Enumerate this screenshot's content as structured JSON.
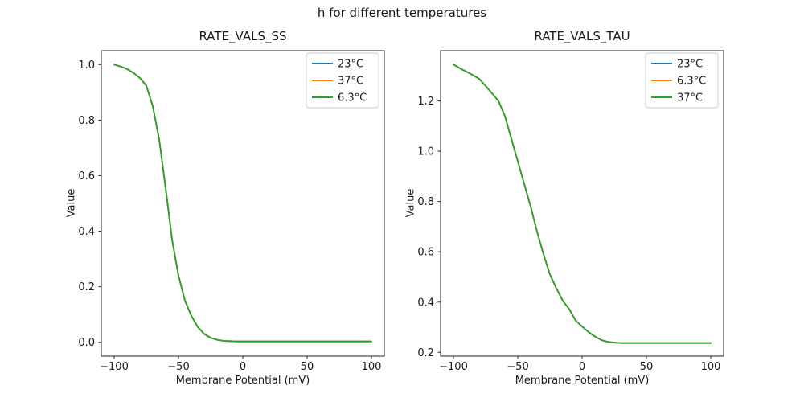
{
  "figure": {
    "title": "h for different temperatures"
  },
  "styles": {
    "background": "#ffffff",
    "text_color": "#1a1a1a",
    "spine_color": "#262626",
    "legend_border": "#cccccc",
    "palette": [
      "#1f77b4",
      "#ff7f0e",
      "#2ca02c"
    ]
  },
  "chart_data": [
    {
      "id": "rate_vals_ss",
      "type": "line",
      "title": "RATE_VALS_SS",
      "xlabel": "Membrane Potential (mV)",
      "ylabel": "Value",
      "xlim": [
        -110,
        110
      ],
      "ylim": [
        -0.05,
        1.05
      ],
      "grid": false,
      "legend_position": "upper right",
      "xticks": [
        -100,
        -50,
        0,
        50,
        100
      ],
      "xtick_labels": [
        "−100",
        "−50",
        "0",
        "50",
        "100"
      ],
      "yticks": [
        0.0,
        0.2,
        0.4,
        0.6,
        0.8,
        1.0
      ],
      "ytick_labels": [
        "0.0",
        "0.2",
        "0.4",
        "0.6",
        "0.8",
        "1.0"
      ],
      "x": [
        -100,
        -95,
        -90,
        -85,
        -80,
        -75,
        -70,
        -65,
        -60,
        -55,
        -50,
        -45,
        -40,
        -35,
        -30,
        -25,
        -20,
        -15,
        -10,
        -5,
        0,
        5,
        10,
        15,
        20,
        25,
        30,
        35,
        40,
        45,
        50,
        55,
        60,
        65,
        70,
        75,
        80,
        85,
        90,
        95,
        100
      ],
      "series": [
        {
          "name": "23°C",
          "color": "#1f77b4",
          "values": [
            1.0,
            0.993,
            0.984,
            0.97,
            0.952,
            0.924,
            0.85,
            0.73,
            0.555,
            0.37,
            0.24,
            0.15,
            0.095,
            0.055,
            0.03,
            0.016,
            0.009,
            0.005,
            0.004,
            0.003,
            0.003,
            0.003,
            0.003,
            0.003,
            0.003,
            0.003,
            0.003,
            0.003,
            0.003,
            0.003,
            0.003,
            0.003,
            0.003,
            0.003,
            0.003,
            0.003,
            0.003,
            0.003,
            0.003,
            0.003,
            0.003
          ]
        },
        {
          "name": "37°C",
          "color": "#ff7f0e",
          "values": [
            1.0,
            0.993,
            0.984,
            0.97,
            0.952,
            0.924,
            0.85,
            0.73,
            0.555,
            0.37,
            0.24,
            0.15,
            0.095,
            0.055,
            0.03,
            0.016,
            0.009,
            0.005,
            0.004,
            0.003,
            0.003,
            0.003,
            0.003,
            0.003,
            0.003,
            0.003,
            0.003,
            0.003,
            0.003,
            0.003,
            0.003,
            0.003,
            0.003,
            0.003,
            0.003,
            0.003,
            0.003,
            0.003,
            0.003,
            0.003,
            0.003
          ]
        },
        {
          "name": "6.3°C",
          "color": "#2ca02c",
          "values": [
            1.0,
            0.993,
            0.984,
            0.97,
            0.952,
            0.924,
            0.85,
            0.73,
            0.555,
            0.37,
            0.24,
            0.15,
            0.095,
            0.055,
            0.03,
            0.016,
            0.009,
            0.005,
            0.004,
            0.003,
            0.003,
            0.003,
            0.003,
            0.003,
            0.003,
            0.003,
            0.003,
            0.003,
            0.003,
            0.003,
            0.003,
            0.003,
            0.003,
            0.003,
            0.003,
            0.003,
            0.003,
            0.003,
            0.003,
            0.003,
            0.003
          ]
        }
      ]
    },
    {
      "id": "rate_vals_tau",
      "type": "line",
      "title": "RATE_VALS_TAU",
      "xlabel": "Membrane Potential (mV)",
      "ylabel": "Value",
      "xlim": [
        -110,
        110
      ],
      "ylim": [
        0.185,
        1.4
      ],
      "grid": false,
      "legend_position": "upper right",
      "xticks": [
        -100,
        -50,
        0,
        50,
        100
      ],
      "xtick_labels": [
        "−100",
        "−50",
        "0",
        "50",
        "100"
      ],
      "yticks": [
        0.2,
        0.4,
        0.6,
        0.8,
        1.0,
        1.2
      ],
      "ytick_labels": [
        "0.2",
        "0.4",
        "0.6",
        "0.8",
        "1.0",
        "1.2"
      ],
      "x": [
        -100,
        -95,
        -90,
        -85,
        -80,
        -75,
        -70,
        -65,
        -60,
        -55,
        -50,
        -45,
        -40,
        -35,
        -30,
        -25,
        -20,
        -15,
        -10,
        -5,
        0,
        5,
        10,
        15,
        20,
        25,
        30,
        35,
        40,
        45,
        50,
        55,
        60,
        65,
        70,
        75,
        80,
        85,
        90,
        95,
        100
      ],
      "series": [
        {
          "name": "23°C",
          "color": "#1f77b4",
          "values": [
            1.345,
            1.33,
            1.317,
            1.303,
            1.288,
            1.26,
            1.23,
            1.2,
            1.14,
            1.05,
            0.96,
            0.87,
            0.78,
            0.68,
            0.59,
            0.51,
            0.455,
            0.405,
            0.372,
            0.327,
            0.303,
            0.281,
            0.263,
            0.249,
            0.242,
            0.239,
            0.237,
            0.237,
            0.237,
            0.237,
            0.237,
            0.237,
            0.237,
            0.237,
            0.237,
            0.237,
            0.237,
            0.237,
            0.237,
            0.237,
            0.237
          ]
        },
        {
          "name": "6.3°C",
          "color": "#ff7f0e",
          "values": [
            1.345,
            1.33,
            1.317,
            1.303,
            1.288,
            1.26,
            1.23,
            1.2,
            1.14,
            1.05,
            0.96,
            0.87,
            0.78,
            0.68,
            0.59,
            0.51,
            0.455,
            0.405,
            0.372,
            0.327,
            0.303,
            0.281,
            0.263,
            0.249,
            0.242,
            0.239,
            0.237,
            0.237,
            0.237,
            0.237,
            0.237,
            0.237,
            0.237,
            0.237,
            0.237,
            0.237,
            0.237,
            0.237,
            0.237,
            0.237,
            0.237
          ]
        },
        {
          "name": "37°C",
          "color": "#2ca02c",
          "values": [
            1.345,
            1.33,
            1.317,
            1.303,
            1.288,
            1.26,
            1.23,
            1.2,
            1.14,
            1.05,
            0.96,
            0.87,
            0.78,
            0.68,
            0.59,
            0.51,
            0.455,
            0.405,
            0.372,
            0.327,
            0.303,
            0.281,
            0.263,
            0.249,
            0.242,
            0.239,
            0.237,
            0.237,
            0.237,
            0.237,
            0.237,
            0.237,
            0.237,
            0.237,
            0.237,
            0.237,
            0.237,
            0.237,
            0.237,
            0.237,
            0.237
          ]
        }
      ]
    }
  ]
}
